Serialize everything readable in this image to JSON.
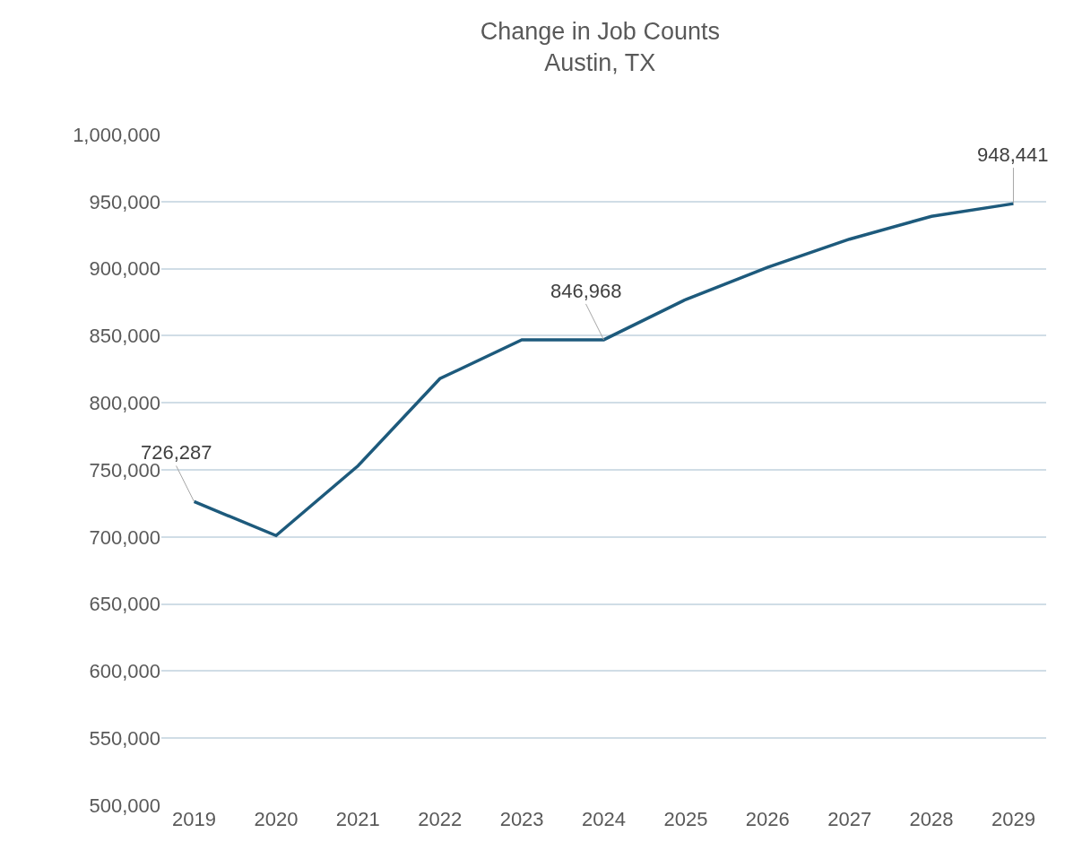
{
  "chart_data": {
    "type": "line",
    "title": "Change in Job Counts",
    "subtitle": "Austin, TX",
    "categories": [
      "2019",
      "2020",
      "2021",
      "2022",
      "2023",
      "2024",
      "2025",
      "2026",
      "2027",
      "2028",
      "2029"
    ],
    "series": [
      {
        "color": "#1d5a7c",
        "values": [
          726287,
          701000,
          753000,
          818000,
          847000,
          846968,
          877000,
          901000,
          922000,
          939000,
          948441
        ],
        "value_labels": [
          "726,287",
          null,
          null,
          null,
          null,
          "846,968",
          null,
          null,
          null,
          null,
          "948,441"
        ]
      }
    ],
    "ylim": [
      500000,
      1000000
    ],
    "yticks": [
      {
        "value": 500000,
        "label": "500,000"
      },
      {
        "value": 550000,
        "label": "550,000"
      },
      {
        "value": 600000,
        "label": "600,000"
      },
      {
        "value": 650000,
        "label": "650,000"
      },
      {
        "value": 700000,
        "label": "700,000"
      },
      {
        "value": 750000,
        "label": "750,000"
      },
      {
        "value": 800000,
        "label": "800,000"
      },
      {
        "value": 850000,
        "label": "850,000"
      },
      {
        "value": 900000,
        "label": "900,000"
      },
      {
        "value": 950000,
        "label": "950,000"
      },
      {
        "value": 1000000,
        "label": "1,000,000"
      }
    ],
    "grid": "y",
    "marker": "none",
    "line_style": "solid"
  }
}
